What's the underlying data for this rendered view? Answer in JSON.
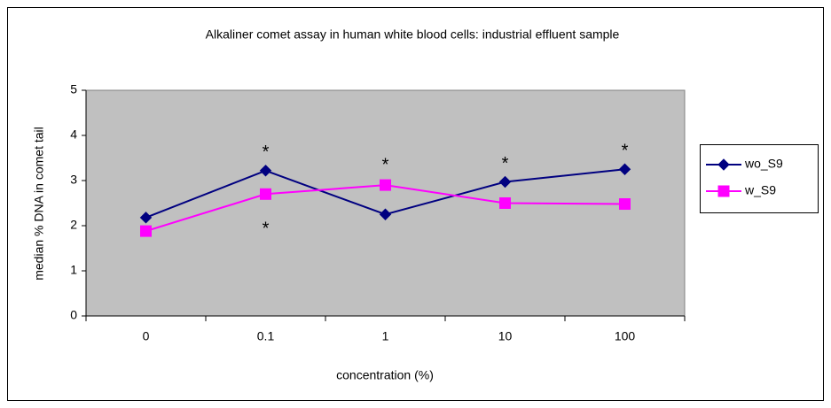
{
  "chart_data": {
    "type": "line",
    "title": "Alkaliner comet assay in human white blood cells: industrial effluent sample",
    "xlabel": "concentration (%)",
    "ylabel": "median % DNA in comet tail",
    "categories": [
      "0",
      "0.1",
      "1",
      "10",
      "100"
    ],
    "series": [
      {
        "name": "wo_S9",
        "color": "#000080",
        "marker": "diamond",
        "values": [
          2.18,
          3.22,
          2.25,
          2.97,
          3.25
        ]
      },
      {
        "name": "w_S9",
        "color": "#ff00ff",
        "marker": "square",
        "values": [
          1.88,
          2.7,
          2.9,
          2.5,
          2.48
        ]
      }
    ],
    "annotations": [
      "*",
      "*",
      "*",
      "*",
      "*"
    ],
    "ylim": [
      0,
      5
    ],
    "yticks": [
      0,
      1,
      2,
      3,
      4,
      5
    ],
    "grid": false,
    "legend": "right"
  }
}
